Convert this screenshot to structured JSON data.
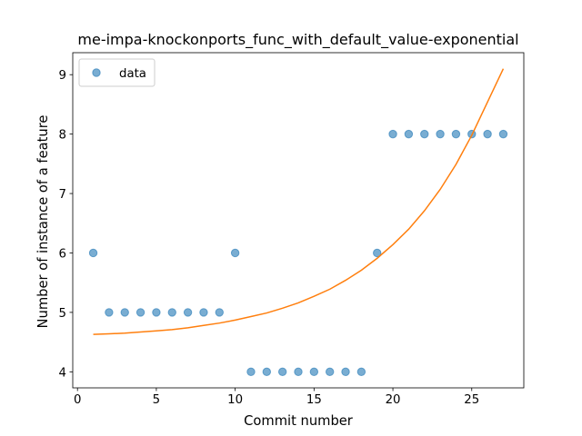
{
  "chart_data": {
    "type": "scatter",
    "title": "me-impa-knockonports_func_with_default_value-exponential",
    "xlabel": "Commit number",
    "ylabel": "Number of instance of a feature",
    "xlim": [
      -0.3,
      28.3
    ],
    "ylim": [
      3.73,
      9.37
    ],
    "xticks": [
      0,
      5,
      10,
      15,
      20,
      25
    ],
    "yticks": [
      4,
      5,
      6,
      7,
      8,
      9
    ],
    "grid": false,
    "legend_position": "upper-left",
    "series": [
      {
        "name": "data",
        "kind": "scatter",
        "color": "#1f77b4",
        "x": [
          1,
          2,
          3,
          4,
          5,
          6,
          7,
          8,
          9,
          10,
          11,
          12,
          13,
          14,
          15,
          16,
          17,
          18,
          19,
          20,
          21,
          22,
          23,
          24,
          25,
          26,
          27
        ],
        "y": [
          6,
          5,
          5,
          5,
          5,
          5,
          5,
          5,
          5,
          6,
          4,
          4,
          4,
          4,
          4,
          4,
          4,
          4,
          6,
          8,
          8,
          8,
          8,
          8,
          8,
          8,
          8
        ]
      },
      {
        "kind": "line",
        "color": "#ff7f0e",
        "x": [
          1,
          2,
          3,
          4,
          5,
          6,
          7,
          8,
          9,
          10,
          11,
          12,
          13,
          14,
          15,
          16,
          17,
          18,
          19,
          20,
          21,
          22,
          23,
          24,
          25,
          26,
          27
        ],
        "y": [
          4.63,
          4.64,
          4.65,
          4.67,
          4.69,
          4.71,
          4.74,
          4.78,
          4.82,
          4.87,
          4.93,
          4.99,
          5.07,
          5.16,
          5.27,
          5.39,
          5.54,
          5.71,
          5.91,
          6.14,
          6.4,
          6.71,
          7.07,
          7.49,
          7.98,
          8.54,
          9.1
        ]
      }
    ]
  }
}
